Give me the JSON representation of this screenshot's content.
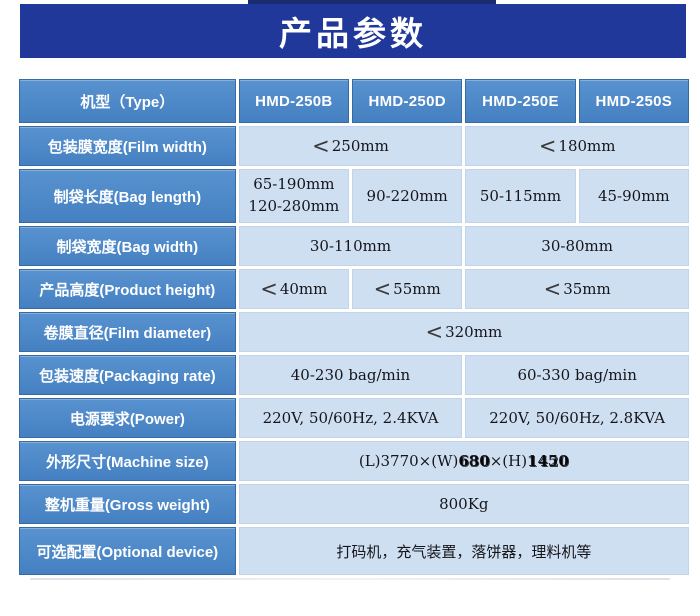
{
  "page": {
    "title": "产品参数",
    "accent_color": "#21389b",
    "label_cell_color": "#4a87c8",
    "data_cell_color": "#cfdff2"
  },
  "table": {
    "header": {
      "label": "机型（Type）",
      "models": [
        "HMD-250B",
        "HMD-250D",
        "HMD-250E",
        "HMD-250S"
      ]
    },
    "rows": [
      {
        "label": "包装膜宽度(Film width)",
        "cells": [
          {
            "sym": "<",
            "text": "250mm"
          },
          {
            "sym": "<",
            "text": "180mm"
          }
        ]
      },
      {
        "label": "制袋长度(Bag length)",
        "cells": [
          {
            "line1": "65-190mm",
            "line2": "120-280mm"
          },
          {
            "text": "90-220mm"
          },
          {
            "text": "50-115mm"
          },
          {
            "text": "45-90mm"
          }
        ]
      },
      {
        "label": "制袋宽度(Bag width)",
        "cells": [
          {
            "text": "30-110mm"
          },
          {
            "text": "30-80mm"
          }
        ]
      },
      {
        "label": "产品高度(Product height)",
        "cells": [
          {
            "sym": "<",
            "text": "40mm"
          },
          {
            "sym": "<",
            "text": "55mm"
          },
          {
            "sym": "<",
            "text": "35mm"
          }
        ]
      },
      {
        "label": "卷膜直径(Film diameter)",
        "cells": [
          {
            "sym": "<",
            "text": "320mm"
          }
        ]
      },
      {
        "label": "包装速度(Packaging rate)",
        "cells": [
          {
            "text": "40-230 bag/min"
          },
          {
            "text": "60-330 bag/min"
          }
        ]
      },
      {
        "label": "电源要求(Power)",
        "cells": [
          {
            "text": "220V, 50/60Hz, 2.4KVA"
          },
          {
            "text": "220V, 50/60Hz, 2.8KVA"
          }
        ]
      },
      {
        "label": "外形尺寸(Machine size)",
        "cells": [
          {
            "prefix": "(L)3770×(W)",
            "width_value": "680",
            "width_ghost": "630",
            "mid": "×(H)",
            "height_value": "1450",
            "height_ghost": "1420"
          }
        ]
      },
      {
        "label": "整机重量(Gross weight)",
        "cells": [
          {
            "text": "800Kg"
          }
        ]
      },
      {
        "label": "可选配置(Optional device)",
        "cells": [
          {
            "text": "打码机，充气装置，落饼器，理料机等"
          }
        ]
      }
    ]
  }
}
